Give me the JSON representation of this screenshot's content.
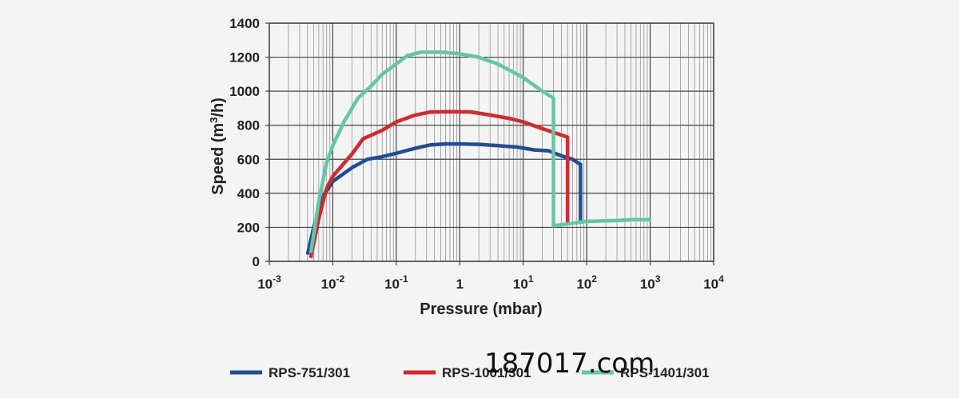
{
  "watermark": "187017.com",
  "chart_data": {
    "type": "line",
    "title": "",
    "xlabel": "Pressure (mbar)",
    "ylabel": "Speed (m3/h)",
    "ylabel_base": "Speed (m",
    "ylabel_sup": "3",
    "ylabel_end": "/h)",
    "xscale": "log",
    "xlim": [
      0.001,
      10000
    ],
    "ylim": [
      0,
      1400
    ],
    "grid": true,
    "legend_position": "bottom",
    "x_ticks": [
      {
        "base": "10",
        "exp": "-3"
      },
      {
        "base": "10",
        "exp": "-2"
      },
      {
        "base": "10",
        "exp": "-1"
      },
      {
        "base": "1",
        "exp": ""
      },
      {
        "base": "10",
        "exp": "1"
      },
      {
        "base": "10",
        "exp": "2"
      },
      {
        "base": "10",
        "exp": "3"
      },
      {
        "base": "10",
        "exp": "4"
      }
    ],
    "y_ticks": [
      "0",
      "200",
      "400",
      "600",
      "800",
      "1000",
      "1200",
      "1400"
    ],
    "series": [
      {
        "name": "RPS-751/301",
        "color": "#1f4e96",
        "points": [
          [
            0.004,
            40
          ],
          [
            0.005,
            200
          ],
          [
            0.007,
            380
          ],
          [
            0.01,
            470
          ],
          [
            0.02,
            550
          ],
          [
            0.035,
            600
          ],
          [
            0.06,
            615
          ],
          [
            0.1,
            635
          ],
          [
            0.2,
            665
          ],
          [
            0.35,
            685
          ],
          [
            0.6,
            690
          ],
          [
            1,
            690
          ],
          [
            2,
            688
          ],
          [
            4,
            680
          ],
          [
            8,
            672
          ],
          [
            15,
            655
          ],
          [
            25,
            650
          ],
          [
            40,
            620
          ],
          [
            60,
            600
          ],
          [
            80,
            570
          ],
          [
            80,
            240
          ]
        ]
      },
      {
        "name": "RPS-1001/301",
        "color": "#d6262e",
        "points": [
          [
            0.0045,
            20
          ],
          [
            0.006,
            250
          ],
          [
            0.008,
            430
          ],
          [
            0.01,
            500
          ],
          [
            0.02,
            630
          ],
          [
            0.03,
            720
          ],
          [
            0.06,
            770
          ],
          [
            0.1,
            820
          ],
          [
            0.2,
            860
          ],
          [
            0.35,
            878
          ],
          [
            0.7,
            880
          ],
          [
            1.5,
            878
          ],
          [
            3,
            860
          ],
          [
            6,
            840
          ],
          [
            10,
            820
          ],
          [
            20,
            780
          ],
          [
            35,
            750
          ],
          [
            50,
            730
          ],
          [
            50,
            230
          ]
        ]
      },
      {
        "name": "RPS-1401/301",
        "color": "#5fc9a4",
        "points": [
          [
            0.0045,
            50
          ],
          [
            0.006,
            350
          ],
          [
            0.008,
            580
          ],
          [
            0.01,
            680
          ],
          [
            0.015,
            820
          ],
          [
            0.025,
            960
          ],
          [
            0.04,
            1030
          ],
          [
            0.06,
            1100
          ],
          [
            0.1,
            1160
          ],
          [
            0.15,
            1210
          ],
          [
            0.25,
            1230
          ],
          [
            0.5,
            1230
          ],
          [
            1,
            1220
          ],
          [
            2,
            1200
          ],
          [
            4,
            1160
          ],
          [
            10,
            1080
          ],
          [
            20,
            1000
          ],
          [
            30,
            960
          ],
          [
            30,
            210
          ],
          [
            50,
            220
          ],
          [
            100,
            235
          ],
          [
            300,
            240
          ],
          [
            500,
            245
          ],
          [
            1000,
            245
          ]
        ]
      }
    ]
  }
}
